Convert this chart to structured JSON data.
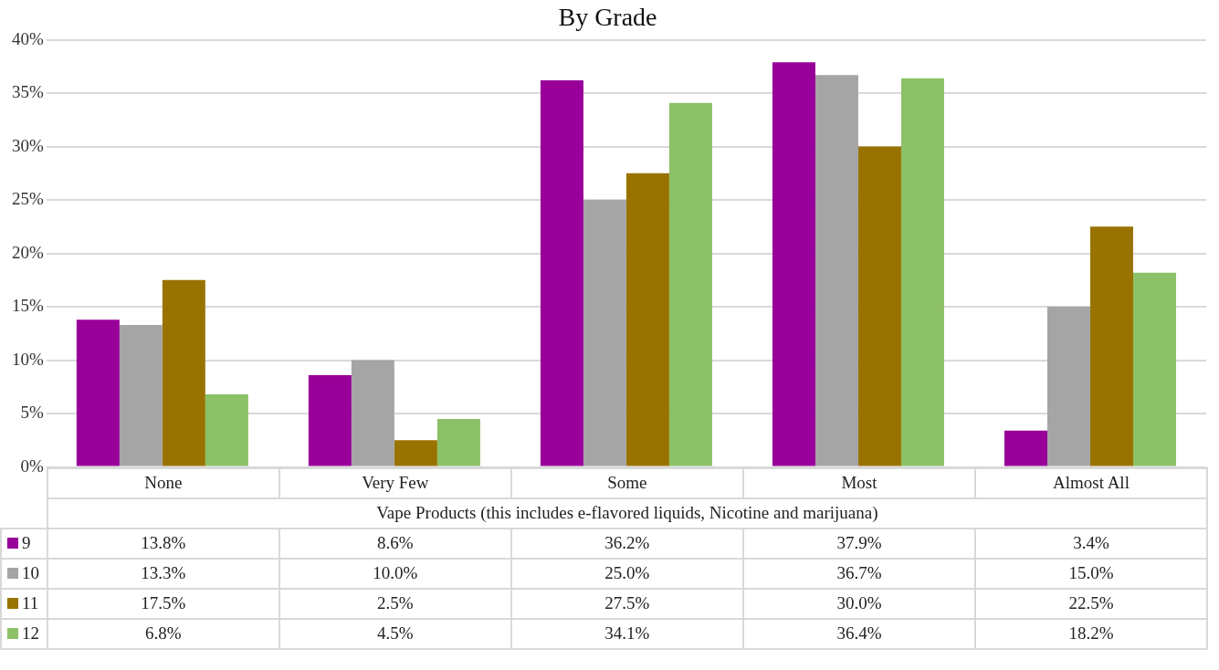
{
  "chart_data": {
    "type": "bar",
    "title": "By Grade",
    "xlabel": "Vape Products (this includes e-flavored liquids, Nicotine and marijuana)",
    "categories": [
      "None",
      "Very Few",
      "Some",
      "Most",
      "Almost All"
    ],
    "series": [
      {
        "name": "9",
        "color": "#990099",
        "values": [
          13.8,
          8.6,
          36.2,
          37.9,
          3.4
        ],
        "value_labels": [
          "13.8%",
          "8.6%",
          "36.2%",
          "37.9%",
          "3.4%"
        ]
      },
      {
        "name": "10",
        "color": "#a5a5a5",
        "values": [
          13.3,
          10.0,
          25.0,
          36.7,
          15.0
        ],
        "value_labels": [
          "13.3%",
          "10.0%",
          "25.0%",
          "36.7%",
          "15.0%"
        ]
      },
      {
        "name": "11",
        "color": "#997300",
        "values": [
          17.5,
          2.5,
          27.5,
          30.0,
          22.5
        ],
        "value_labels": [
          "17.5%",
          "2.5%",
          "27.5%",
          "30.0%",
          "22.5%"
        ]
      },
      {
        "name": "12",
        "color": "#8cc168",
        "values": [
          6.8,
          4.5,
          34.1,
          36.4,
          18.2
        ],
        "value_labels": [
          "6.8%",
          "4.5%",
          "34.1%",
          "36.4%",
          "18.2%"
        ]
      }
    ],
    "ylim": [
      0,
      40
    ],
    "yticks": [
      {
        "value": 0,
        "label": "0%"
      },
      {
        "value": 5,
        "label": "5%"
      },
      {
        "value": 10,
        "label": "10%"
      },
      {
        "value": 15,
        "label": "15%"
      },
      {
        "value": 20,
        "label": "20%"
      },
      {
        "value": 25,
        "label": "25%"
      },
      {
        "value": 30,
        "label": "30%"
      },
      {
        "value": 35,
        "label": "35%"
      },
      {
        "value": 40,
        "label": "40%"
      }
    ],
    "grid": "y",
    "legend": "bottom"
  }
}
